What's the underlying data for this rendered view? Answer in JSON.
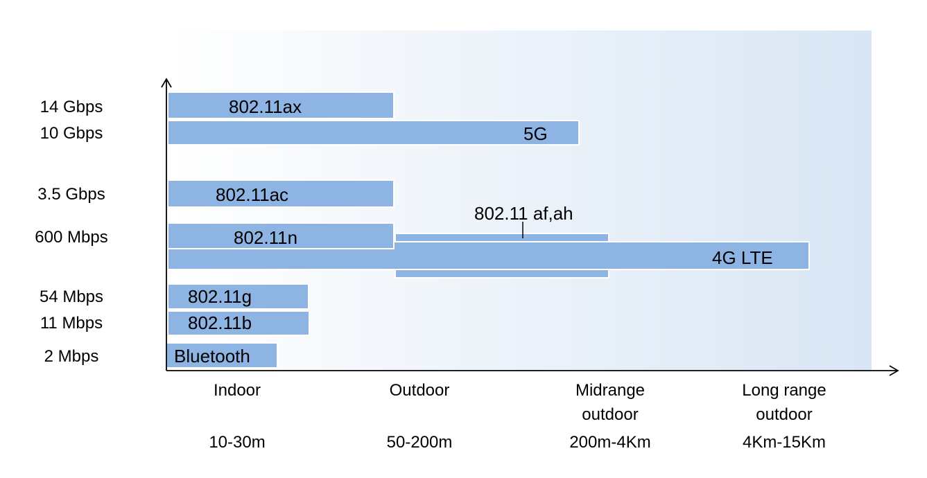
{
  "chart_data": {
    "type": "bar",
    "orientation": "horizontal",
    "title": "",
    "xlabel": "",
    "ylabel": "",
    "colors": {
      "bar": "#8EB4E3",
      "bar_edge": "#ffffff",
      "background_left": "#ffffff",
      "background_right": "#D9E6F4",
      "axis": "#000000"
    },
    "y_ticks": [
      "14 Gbps",
      "10 Gbps",
      "3.5 Gbps",
      "600 Mbps",
      "54 Mbps",
      "11 Mbps",
      "2 Mbps"
    ],
    "x_categories": [
      {
        "name": "Indoor",
        "range": "10-30m"
      },
      {
        "name": "Midrange\noutdoor",
        "range": "200m-4Km"
      },
      {
        "name": "Outdoor",
        "range": "50-200m"
      },
      {
        "name": "Long range\noutdoor",
        "range": "4Km-15Km"
      }
    ],
    "bars": [
      {
        "label": "802.11ax",
        "rate": "14 Gbps",
        "range": "Outdoor"
      },
      {
        "label": "5G",
        "rate": "10 Gbps",
        "range": "Midrange outdoor"
      },
      {
        "label": "802.11ac",
        "rate": "3.5 Gbps",
        "range": "Outdoor"
      },
      {
        "label": "802.11n",
        "rate": "600 Mbps",
        "range": "Outdoor"
      },
      {
        "label": "802.11 af,ah",
        "rate": "600 Mbps",
        "range": "Midrange outdoor"
      },
      {
        "label": "4G LTE",
        "rate": "600 Mbps",
        "range": "Long range outdoor"
      },
      {
        "label": "802.11g",
        "rate": "54 Mbps",
        "range": "Indoor"
      },
      {
        "label": "802.11b",
        "rate": "11 Mbps",
        "range": "Indoor"
      },
      {
        "label": "Bluetooth",
        "rate": "2 Mbps",
        "range": "Indoor"
      }
    ],
    "legend": "none",
    "grid": false
  }
}
